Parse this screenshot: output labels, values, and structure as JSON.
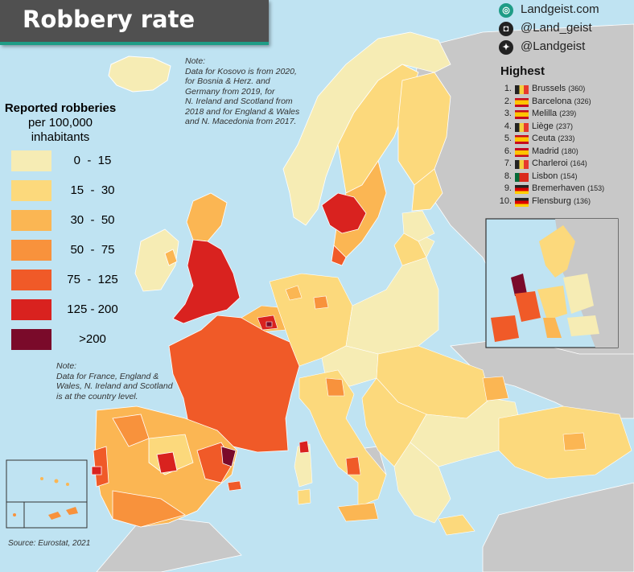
{
  "title": "Robbery rate",
  "social": [
    {
      "icon": "globe-icon",
      "glyph": "◎",
      "text": "Landgeist.com"
    },
    {
      "icon": "instagram-icon",
      "glyph": "◘",
      "text": "@Land_geist"
    },
    {
      "icon": "twitter-icon",
      "glyph": "✦",
      "text": "@Landgeist"
    }
  ],
  "legend": {
    "title_line1": "Reported robberies",
    "title_line2": "per 100,000",
    "title_line3": "inhabitants",
    "classes": [
      {
        "label": "0  -  15",
        "color": "#f6ecb4"
      },
      {
        "label": "15  -  30",
        "color": "#fcd97c"
      },
      {
        "label": "30  -  50",
        "color": "#fbb653"
      },
      {
        "label": "50  -  75",
        "color": "#f8923c"
      },
      {
        "label": "75  -  125",
        "color": "#f05a28"
      },
      {
        "label": "125 - 200",
        "color": "#d9221f"
      },
      {
        "label": ">200",
        "color": "#7a0a2a"
      }
    ]
  },
  "notes": {
    "top": "Note:\nData for Kosovo is from 2020,\nfor Bosnia & Herz. and\nGermany from 2019, for\nN. Ireland and Scotland from\n2018 and for England & Wales\nand N. Macedonia from 2017.",
    "bottom": "Note:\nData for France, England &\nWales, N. Ireland and Scotland\nis at the country level."
  },
  "highest": {
    "title": "Highest",
    "items": [
      {
        "rank": "1.",
        "city": "Brussels",
        "value": "(360)",
        "flag": [
          "#222222",
          "#f4d03f",
          "#e63b2e"
        ]
      },
      {
        "rank": "2.",
        "city": "Barcelona",
        "value": "(326)",
        "flag": [
          "#c60b1e",
          "#ffc400",
          "#c60b1e"
        ]
      },
      {
        "rank": "3.",
        "city": "Melilla",
        "value": "(239)",
        "flag": [
          "#c60b1e",
          "#ffc400",
          "#c60b1e"
        ]
      },
      {
        "rank": "4.",
        "city": "Liège",
        "value": "(237)",
        "flag": [
          "#222222",
          "#f4d03f",
          "#e63b2e"
        ]
      },
      {
        "rank": "5.",
        "city": "Ceuta",
        "value": "(233)",
        "flag": [
          "#c60b1e",
          "#ffc400",
          "#c60b1e"
        ]
      },
      {
        "rank": "6.",
        "city": "Madrid",
        "value": "(180)",
        "flag": [
          "#c60b1e",
          "#ffc400",
          "#c60b1e"
        ]
      },
      {
        "rank": "7.",
        "city": "Charleroi",
        "value": "(164)",
        "flag": [
          "#222222",
          "#f4d03f",
          "#e63b2e"
        ]
      },
      {
        "rank": "8.",
        "city": "Lisbon",
        "value": "(154)",
        "flag": [
          "#046a38",
          "#da291c",
          "#da291c"
        ]
      },
      {
        "rank": "9.",
        "city": "Bremerhaven",
        "value": "(153)",
        "flag": [
          "#222222",
          "#dd0000",
          "#ffce00"
        ]
      },
      {
        "rank": "10.",
        "city": "Flensburg",
        "value": "(136)",
        "flag": [
          "#222222",
          "#dd0000",
          "#ffce00"
        ]
      }
    ]
  },
  "source": "Source: Eurostat, 2021",
  "colors": {
    "sea": "#bfe3f2",
    "no_data": "#c8c8c8",
    "accent": "#1f9c86",
    "title_bg": "#505050"
  }
}
